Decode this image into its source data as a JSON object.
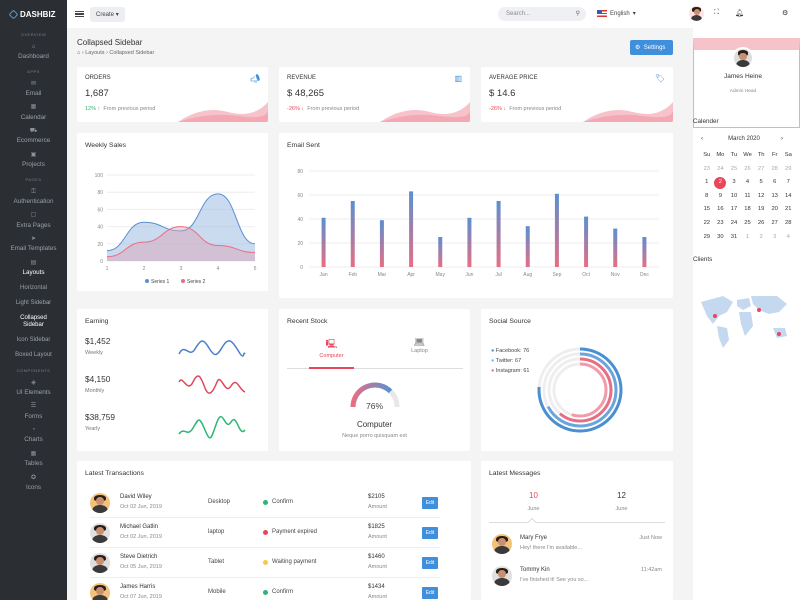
{
  "brand": "DASHBIZ",
  "sidebar": {
    "sections": [
      "OVERVIEW",
      "APPS",
      "PAGES",
      "COMPONENTS"
    ],
    "items": [
      {
        "label": "Dashboard",
        "icon": "home-icon"
      },
      {
        "label": "Email",
        "icon": "mail-icon"
      },
      {
        "label": "Calendar",
        "icon": "calendar-icon"
      },
      {
        "label": "Ecommerce",
        "icon": "cart-icon"
      },
      {
        "label": "Projects",
        "icon": "briefcase-icon"
      },
      {
        "label": "Authentication",
        "icon": "lock-icon"
      },
      {
        "label": "Extra Pages",
        "icon": "file-icon"
      },
      {
        "label": "Email Templates",
        "icon": "send-icon"
      },
      {
        "label": "Layouts",
        "icon": "layout-icon"
      },
      {
        "label": "UI Elements",
        "icon": "ui-icon"
      },
      {
        "label": "Forms",
        "icon": "form-icon"
      },
      {
        "label": "Charts",
        "icon": "chart-icon"
      },
      {
        "label": "Tables",
        "icon": "table-icon"
      },
      {
        "label": "Icons",
        "icon": "icons-icon"
      }
    ],
    "layouts_sub": [
      "Horizontal",
      "Light Sidebar",
      "Collapsed Sidebar",
      "Icon Sidebar",
      "Boxed Layout"
    ]
  },
  "topbar": {
    "create": "Create",
    "search_placeholder": "Search...",
    "language": "English"
  },
  "page": {
    "title": "Collapsed Sidebar",
    "crumb1": "Layouts",
    "crumb2": "Collapsed Sidebar",
    "settings": "Settings"
  },
  "stats": [
    {
      "title": "ORDERS",
      "value": "1,687",
      "change": "12%",
      "note": "From previous period",
      "dir": "up"
    },
    {
      "title": "REVENUE",
      "value": "$ 48,265",
      "change": "-26%",
      "note": "From previous period",
      "dir": "down"
    },
    {
      "title": "AVERAGE PRICE",
      "value": "$ 14.6",
      "change": "-26%",
      "note": "From previous period",
      "dir": "down"
    }
  ],
  "weekly": {
    "title": "Weekly Sales",
    "legend": [
      "Series 1",
      "Series 2"
    ]
  },
  "email": {
    "title": "Email Sent"
  },
  "earning": {
    "title": "Earning",
    "rows": [
      {
        "v": "$1,452",
        "l": "Weekly"
      },
      {
        "v": "$4,150",
        "l": "Monthly"
      },
      {
        "v": "$38,759",
        "l": "Yearly"
      }
    ]
  },
  "stock": {
    "title": "Recent Stock",
    "tabs": [
      "Computer",
      "Laptop"
    ],
    "pct": "76%",
    "name": "Computer",
    "desc": "Neque porro quisquam est"
  },
  "social": {
    "title": "Social Source",
    "items": [
      {
        "label": "Facebook: 76",
        "color": "#4a8fd1"
      },
      {
        "label": "Twitter: 67",
        "color": "#7ab6e8"
      },
      {
        "label": "Instagram: 61",
        "color": "#e86e83"
      }
    ]
  },
  "tx": {
    "title": "Latest Transactions",
    "edit": "Edit",
    "amount_label": "Amount",
    "rows": [
      {
        "name": "David Wiley",
        "date": "Oct 02 Jun, 2019",
        "device": "Desktop",
        "status": "Confirm",
        "color": "#2bb673",
        "amount": "$2105"
      },
      {
        "name": "Michael Gatlin",
        "date": "Oct 02 Jun, 2019",
        "device": "laptop",
        "status": "Payment expired",
        "color": "#e8465a",
        "amount": "$1825"
      },
      {
        "name": "Steve Dietrich",
        "date": "Oct 05 Jun, 2019",
        "device": "Tablet",
        "status": "Waiting payment",
        "color": "#f2c94c",
        "amount": "$1460"
      },
      {
        "name": "James Harris",
        "date": "Oct 07 Jun, 2019",
        "device": "Mobile",
        "status": "Confirm",
        "color": "#2bb673",
        "amount": "$1434"
      }
    ]
  },
  "messages": {
    "title": "Latest Messages",
    "tabs": [
      {
        "n": "10",
        "m": "June"
      },
      {
        "n": "12",
        "m": "June"
      }
    ],
    "rows": [
      {
        "name": "Mary Frye",
        "text": "Hey! there I'm available...",
        "time": "Just Now"
      },
      {
        "name": "Tommy Kin",
        "text": "I've finished it! See you so...",
        "time": "11:42am"
      }
    ]
  },
  "profile": {
    "name": "James Heine",
    "role": "Admin Head"
  },
  "calendar": {
    "title": "Calender",
    "month": "March 2020",
    "days": [
      "Su",
      "Mo",
      "Tu",
      "We",
      "Th",
      "Fr",
      "Sa"
    ],
    "weeks": [
      [
        "23",
        "24",
        "25",
        "26",
        "27",
        "28",
        "29"
      ],
      [
        "1",
        "2",
        "3",
        "4",
        "5",
        "6",
        "7"
      ],
      [
        "8",
        "9",
        "10",
        "11",
        "12",
        "13",
        "14"
      ],
      [
        "15",
        "16",
        "17",
        "18",
        "19",
        "20",
        "21"
      ],
      [
        "22",
        "23",
        "24",
        "25",
        "26",
        "27",
        "28"
      ],
      [
        "29",
        "30",
        "31",
        "1",
        "2",
        "3",
        "4"
      ]
    ]
  },
  "clients": {
    "title": "Clients"
  },
  "chart_data": [
    {
      "type": "area",
      "title": "Weekly Sales",
      "x": [
        1,
        2,
        3,
        4,
        5
      ],
      "ylim": [
        0,
        100
      ],
      "yticks": [
        0,
        20,
        40,
        60,
        80,
        100
      ],
      "series": [
        {
          "name": "Series 1",
          "values": [
            12,
            45,
            35,
            78,
            20
          ]
        },
        {
          "name": "Series 2",
          "values": [
            5,
            22,
            40,
            18,
            10
          ]
        }
      ]
    },
    {
      "type": "bar",
      "title": "Email Sent",
      "categories": [
        "Jan",
        "Feb",
        "Mar",
        "Apr",
        "May",
        "Jun",
        "Jul",
        "Aug",
        "Sep",
        "Oct",
        "Nov",
        "Dec"
      ],
      "ylim": [
        0,
        80
      ],
      "yticks": [
        0,
        20,
        40,
        60,
        80
      ],
      "values": [
        41,
        55,
        39,
        63,
        25,
        41,
        55,
        34,
        61,
        42,
        32,
        25
      ]
    }
  ]
}
